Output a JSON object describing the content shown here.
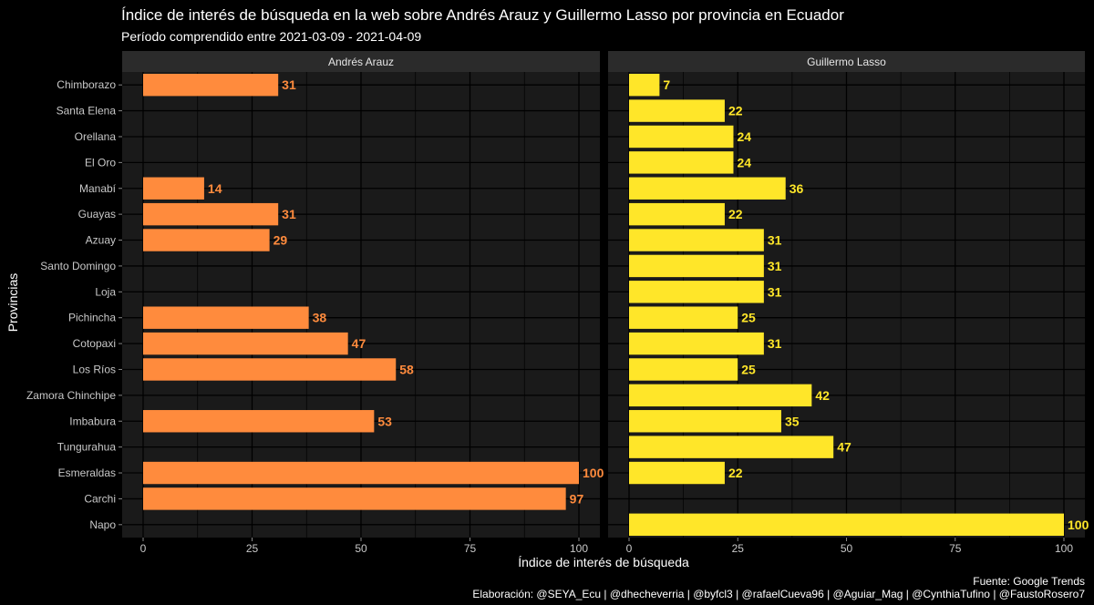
{
  "chart_data": {
    "type": "bar",
    "orientation": "horizontal",
    "title": "Índice de interés de búsqueda en la web sobre Andrés Arauz y Guillermo Lasso por provincia en Ecuador",
    "subtitle": "Período comprendido entre 2021-03-09 - 2021-04-09",
    "xlabel": "Índice de interés de búsqueda",
    "ylabel": "Provincias",
    "xlim": [
      0,
      100
    ],
    "x_ticks": [
      "0",
      "25",
      "50",
      "75",
      "100"
    ],
    "grid": true,
    "categories": [
      "Chimborazo",
      "Santa Elena",
      "Orellana",
      "El Oro",
      "Manabí",
      "Guayas",
      "Azuay",
      "Santo Domingo",
      "Loja",
      "Pichincha",
      "Cotopaxi",
      "Los Ríos",
      "Zamora Chinchipe",
      "Imbabura",
      "Tungurahua",
      "Esmeraldas",
      "Carchi",
      "Napo"
    ],
    "series": [
      {
        "name": "Andrés Arauz",
        "color": "#ff8b3d",
        "values": [
          31,
          null,
          null,
          null,
          14,
          31,
          29,
          null,
          null,
          38,
          47,
          58,
          null,
          53,
          null,
          100,
          97,
          null
        ]
      },
      {
        "name": "Guillermo Lasso",
        "color": "#ffe629",
        "values": [
          7,
          22,
          24,
          24,
          36,
          22,
          31,
          31,
          31,
          25,
          31,
          25,
          42,
          35,
          47,
          22,
          null,
          100
        ]
      }
    ],
    "caption_lines": [
      "Fuente: Google Trends",
      "Elaboración:  @SEYA_Ecu | @dhecheverria | @byfcl3 | @rafaelCueva96 | @Aguiar_Mag | @CynthiaTufino | @FaustoRosero7"
    ]
  },
  "colors": {
    "background": "#000000",
    "panel": "#1a1a1a",
    "strip": "#2b2b2b",
    "grid": "#000000"
  }
}
